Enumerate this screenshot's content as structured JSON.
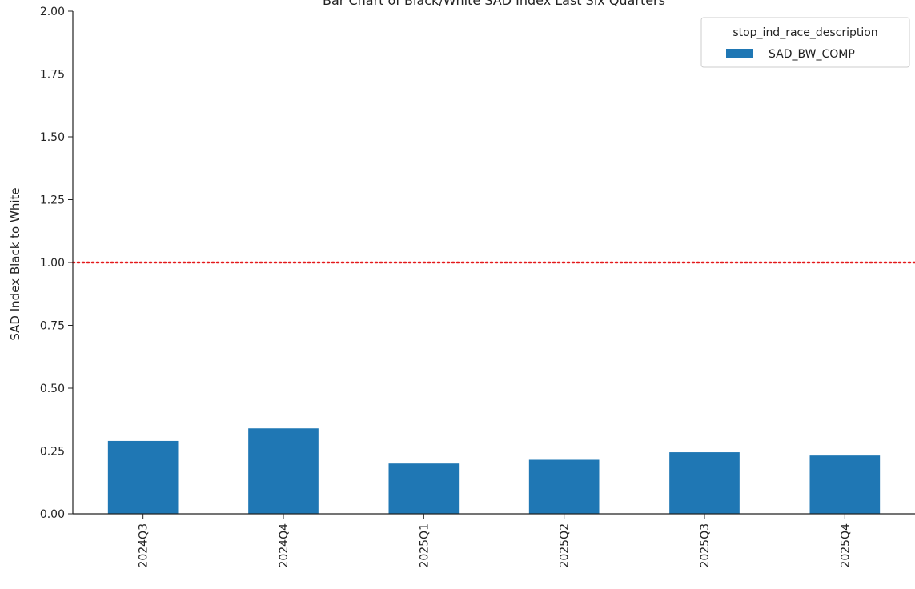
{
  "chart_data": {
    "type": "bar",
    "title": "Bar Chart of Black/White SAD Index Last Six Quarters",
    "xlabel": "",
    "ylabel": "SAD Index Black to White",
    "categories": [
      "2024Q3",
      "2024Q4",
      "2025Q1",
      "2025Q2",
      "2025Q3",
      "2025Q4"
    ],
    "series": [
      {
        "name": "SAD_BW_COMP",
        "values": [
          0.29,
          0.34,
          0.2,
          0.215,
          0.245,
          0.232
        ],
        "color": "#1f77b4"
      }
    ],
    "ylim": [
      0,
      2.0
    ],
    "yticks": [
      "0.00",
      "0.25",
      "0.50",
      "0.75",
      "1.00",
      "1.25",
      "1.50",
      "1.75",
      "2.00"
    ],
    "reference_line": {
      "y": 1.0,
      "color": "#e41a1c",
      "style": "dotted"
    },
    "legend": {
      "title": "stop_ind_race_description",
      "placement": "top-right"
    },
    "grid": false
  }
}
